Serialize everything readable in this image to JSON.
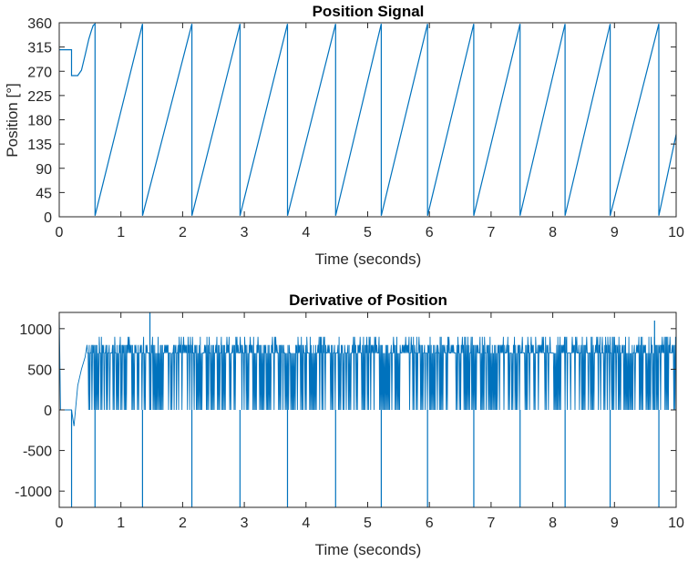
{
  "chart_data": [
    {
      "type": "line",
      "title": "Position Signal",
      "xlabel": "Time (seconds)",
      "ylabel": "Position [°]",
      "xlim": [
        0,
        10
      ],
      "ylim": [
        0,
        360
      ],
      "xticks": [
        0,
        1,
        2,
        3,
        4,
        5,
        6,
        7,
        8,
        9,
        10
      ],
      "yticks": [
        0,
        45,
        90,
        135,
        180,
        225,
        270,
        315,
        360
      ],
      "grid": false,
      "color": "#0072BD",
      "series": [
        {
          "x": [
            0,
            0.2,
            0.2,
            0.3,
            0.36,
            0.42,
            0.48,
            0.52,
            0.55,
            0.58,
            0.58,
            1.35,
            1.35,
            2.15,
            2.15,
            2.93,
            2.93,
            3.7,
            3.7,
            4.48,
            4.48,
            5.22,
            5.22,
            5.97,
            5.97,
            6.72,
            6.72,
            7.47,
            7.47,
            8.2,
            8.2,
            8.93,
            8.93,
            9.72,
            9.72,
            10.0
          ],
          "y": [
            310,
            310,
            262,
            262,
            272,
            300,
            330,
            345,
            355,
            358,
            2,
            358,
            2,
            358,
            2,
            358,
            2,
            358,
            2,
            358,
            2,
            358,
            2,
            358,
            2,
            358,
            2,
            358,
            2,
            358,
            2,
            358,
            2,
            358,
            2,
            153
          ]
        }
      ]
    },
    {
      "type": "line",
      "title": "Derivative of Position",
      "xlabel": "Time (seconds)",
      "ylabel": "",
      "xlim": [
        0,
        10
      ],
      "ylim": [
        -1200,
        1200
      ],
      "xticks": [
        0,
        1,
        2,
        3,
        4,
        5,
        6,
        7,
        8,
        9,
        10
      ],
      "yticks": [
        -1000,
        -500,
        0,
        500,
        1000
      ],
      "grid": false,
      "color": "#0072BD",
      "spikes": {
        "x": [
          0.2,
          0.58,
          1.35,
          2.15,
          2.93,
          3.7,
          4.48,
          5.22,
          5.97,
          6.72,
          7.47,
          8.2,
          8.93,
          9.72
        ],
        "y": -1200
      },
      "peaks": {
        "x": [
          1.47,
          9.65
        ],
        "y": [
          1200,
          1100
        ]
      },
      "oscillation": {
        "x_start": 0.45,
        "x_end": 10.0,
        "low": 0,
        "high_min": 700,
        "high_max": 900
      }
    }
  ]
}
